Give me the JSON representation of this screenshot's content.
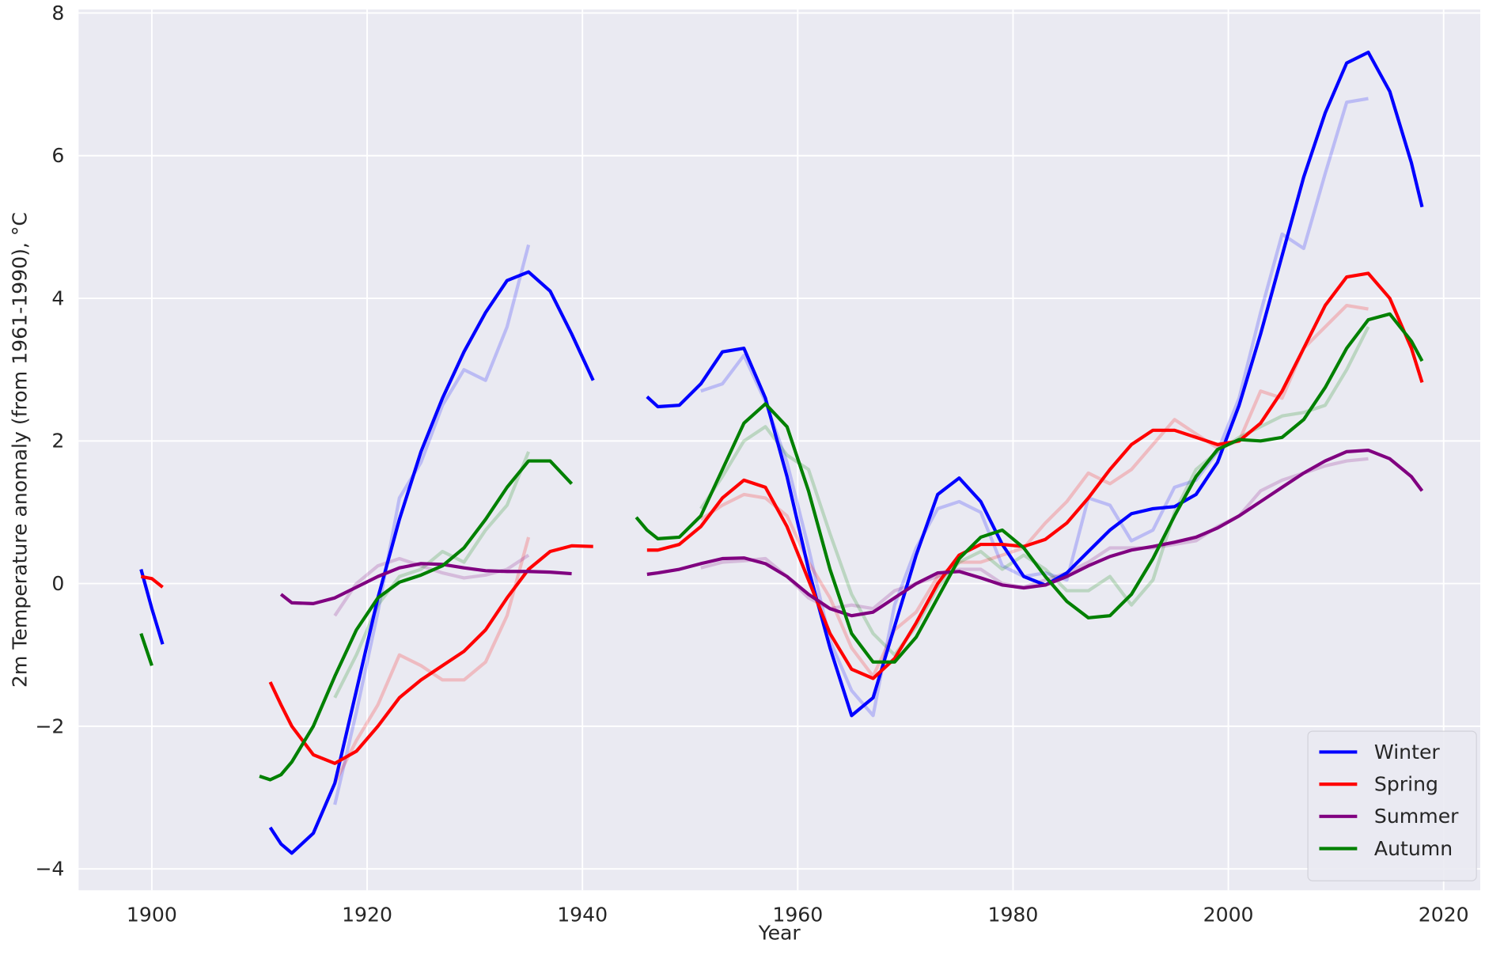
{
  "chart_data": {
    "type": "line",
    "xlabel": "Year",
    "ylabel": "2m Temperature anomaly (from 1961-1990), °C",
    "x": [
      1899,
      1900,
      1901,
      1905,
      1910,
      1911,
      1912,
      1913,
      1915,
      1917,
      1919,
      1921,
      1923,
      1925,
      1927,
      1929,
      1931,
      1933,
      1935,
      1937,
      1939,
      1941,
      1943,
      1945,
      1946,
      1947,
      1949,
      1951,
      1953,
      1955,
      1957,
      1959,
      1961,
      1963,
      1965,
      1967,
      1969,
      1971,
      1973,
      1975,
      1977,
      1979,
      1981,
      1983,
      1985,
      1987,
      1989,
      1991,
      1993,
      1995,
      1997,
      1999,
      2001,
      2003,
      2005,
      2007,
      2009,
      2011,
      2013,
      2015,
      2017,
      2018
    ],
    "series": [
      {
        "name": "Winter",
        "color": "#0000ff",
        "values": [
          0.2,
          -0.35,
          -0.85,
          null,
          null,
          -3.42,
          -3.65,
          -3.78,
          -3.5,
          -2.8,
          -1.5,
          -0.2,
          0.9,
          1.85,
          2.6,
          3.25,
          3.8,
          4.25,
          4.37,
          4.1,
          3.5,
          2.85,
          null,
          null,
          2.62,
          2.48,
          2.5,
          2.8,
          3.25,
          3.3,
          2.6,
          1.5,
          0.2,
          -0.9,
          -1.85,
          -1.6,
          -0.6,
          0.4,
          1.25,
          1.48,
          1.15,
          0.55,
          0.1,
          -0.02,
          0.15,
          0.45,
          0.75,
          0.98,
          1.05,
          1.08,
          1.25,
          1.7,
          2.5,
          3.5,
          4.6,
          5.7,
          6.6,
          7.3,
          7.45,
          6.9,
          5.9,
          5.28
        ],
        "raw_values": [
          null,
          null,
          null,
          null,
          null,
          null,
          null,
          null,
          null,
          -3.1,
          -1.8,
          -0.4,
          1.2,
          1.7,
          2.5,
          3.0,
          2.85,
          3.6,
          4.75,
          null,
          null,
          null,
          null,
          null,
          null,
          null,
          null,
          2.7,
          2.8,
          3.2,
          2.55,
          1.7,
          0.5,
          -0.8,
          -1.5,
          -1.85,
          -0.3,
          0.5,
          1.05,
          1.15,
          1.0,
          0.25,
          0.1,
          0.15,
          0.05,
          1.2,
          1.1,
          0.6,
          0.75,
          1.35,
          1.45,
          1.85,
          2.6,
          3.8,
          4.9,
          4.7,
          5.75,
          6.75,
          6.8,
          null,
          null,
          null
        ]
      },
      {
        "name": "Spring",
        "color": "#ff0000",
        "values": [
          0.1,
          0.07,
          -0.05,
          null,
          null,
          -1.38,
          -1.7,
          -2.0,
          -2.4,
          -2.52,
          -2.35,
          -2.0,
          -1.6,
          -1.35,
          -1.15,
          -0.95,
          -0.65,
          -0.2,
          0.2,
          0.45,
          0.53,
          0.52,
          null,
          null,
          0.47,
          0.47,
          0.55,
          0.8,
          1.2,
          1.45,
          1.35,
          0.8,
          0.05,
          -0.7,
          -1.2,
          -1.33,
          -1.05,
          -0.55,
          0.0,
          0.4,
          0.55,
          0.55,
          0.52,
          0.62,
          0.85,
          1.2,
          1.6,
          1.95,
          2.15,
          2.15,
          2.05,
          1.95,
          2.0,
          2.25,
          2.7,
          3.3,
          3.9,
          4.3,
          4.35,
          4.0,
          3.3,
          2.82
        ],
        "raw_values": [
          null,
          null,
          null,
          null,
          null,
          null,
          null,
          null,
          null,
          -2.8,
          -2.2,
          -1.7,
          -1.0,
          -1.15,
          -1.35,
          -1.35,
          -1.1,
          -0.45,
          0.65,
          null,
          null,
          null,
          null,
          null,
          null,
          null,
          null,
          0.9,
          1.1,
          1.25,
          1.2,
          0.95,
          0.3,
          -0.2,
          -0.9,
          -1.3,
          -0.65,
          -0.4,
          0.1,
          0.3,
          0.3,
          0.4,
          0.5,
          0.85,
          1.15,
          1.55,
          1.4,
          1.6,
          1.95,
          2.3,
          2.1,
          1.9,
          2.0,
          2.7,
          2.6,
          3.3,
          3.6,
          3.9,
          3.85,
          null,
          null,
          null
        ]
      },
      {
        "name": "Summer",
        "color": "#800080",
        "values": [
          null,
          null,
          null,
          null,
          null,
          null,
          -0.15,
          -0.27,
          -0.28,
          -0.2,
          -0.05,
          0.1,
          0.22,
          0.28,
          0.27,
          0.22,
          0.18,
          0.17,
          0.17,
          0.16,
          0.14,
          null,
          null,
          null,
          0.13,
          0.15,
          0.2,
          0.28,
          0.35,
          0.36,
          0.28,
          0.1,
          -0.15,
          -0.35,
          -0.45,
          -0.4,
          -0.2,
          0.0,
          0.15,
          0.17,
          0.08,
          -0.02,
          -0.06,
          -0.02,
          0.1,
          0.25,
          0.38,
          0.47,
          0.52,
          0.58,
          0.65,
          0.78,
          0.95,
          1.15,
          1.35,
          1.55,
          1.72,
          1.85,
          1.87,
          1.75,
          1.5,
          1.3
        ],
        "raw_values": [
          null,
          null,
          null,
          null,
          null,
          null,
          null,
          null,
          null,
          -0.45,
          0.0,
          0.25,
          0.35,
          0.25,
          0.15,
          0.08,
          0.12,
          0.2,
          0.4,
          null,
          null,
          null,
          null,
          null,
          null,
          null,
          null,
          0.22,
          0.3,
          0.32,
          0.35,
          0.1,
          -0.2,
          -0.35,
          -0.3,
          -0.35,
          -0.1,
          0.0,
          0.1,
          0.2,
          0.2,
          0.0,
          -0.05,
          0.05,
          0.15,
          0.3,
          0.5,
          0.5,
          0.5,
          0.55,
          0.6,
          0.8,
          0.95,
          1.3,
          1.45,
          1.55,
          1.65,
          1.72,
          1.75,
          null,
          null,
          null
        ]
      },
      {
        "name": "Autumn",
        "color": "#008000",
        "values": [
          -0.7,
          -1.15,
          null,
          null,
          -2.7,
          -2.75,
          -2.68,
          -2.5,
          -2.0,
          -1.3,
          -0.65,
          -0.2,
          0.02,
          0.12,
          0.25,
          0.5,
          0.9,
          1.35,
          1.72,
          1.72,
          1.4,
          null,
          null,
          0.93,
          0.75,
          0.63,
          0.65,
          0.95,
          1.6,
          2.25,
          2.52,
          2.2,
          1.3,
          0.2,
          -0.7,
          -1.1,
          -1.1,
          -0.75,
          -0.2,
          0.35,
          0.65,
          0.75,
          0.5,
          0.1,
          -0.25,
          -0.48,
          -0.45,
          -0.15,
          0.35,
          0.95,
          1.5,
          1.88,
          2.02,
          2.0,
          2.05,
          2.3,
          2.75,
          3.3,
          3.7,
          3.78,
          3.4,
          3.12
        ],
        "raw_values": [
          null,
          null,
          null,
          null,
          null,
          null,
          null,
          null,
          null,
          -1.6,
          -1.0,
          -0.3,
          0.1,
          0.2,
          0.45,
          0.3,
          0.75,
          1.1,
          1.85,
          null,
          null,
          null,
          null,
          null,
          null,
          null,
          null,
          1.05,
          1.5,
          2.0,
          2.2,
          1.8,
          1.6,
          0.7,
          -0.15,
          -0.7,
          -1.0,
          -0.6,
          -0.05,
          0.3,
          0.45,
          0.2,
          0.4,
          0.2,
          -0.1,
          -0.1,
          0.1,
          -0.3,
          0.05,
          1.0,
          1.6,
          1.85,
          2.05,
          2.2,
          2.35,
          2.4,
          2.5,
          3.0,
          3.6,
          null,
          null,
          null
        ]
      }
    ],
    "xlim": [
      1893.2,
      2023.4
    ],
    "ylim": [
      -4.3,
      8.05
    ],
    "xticks": [
      1900,
      1920,
      1940,
      1960,
      1980,
      2000,
      2020
    ],
    "yticks": [
      {
        "value": -4,
        "label": "−4"
      },
      {
        "value": -2,
        "label": "−2"
      },
      0,
      2,
      4,
      6,
      8
    ],
    "grid": true,
    "legend": "lower right"
  }
}
